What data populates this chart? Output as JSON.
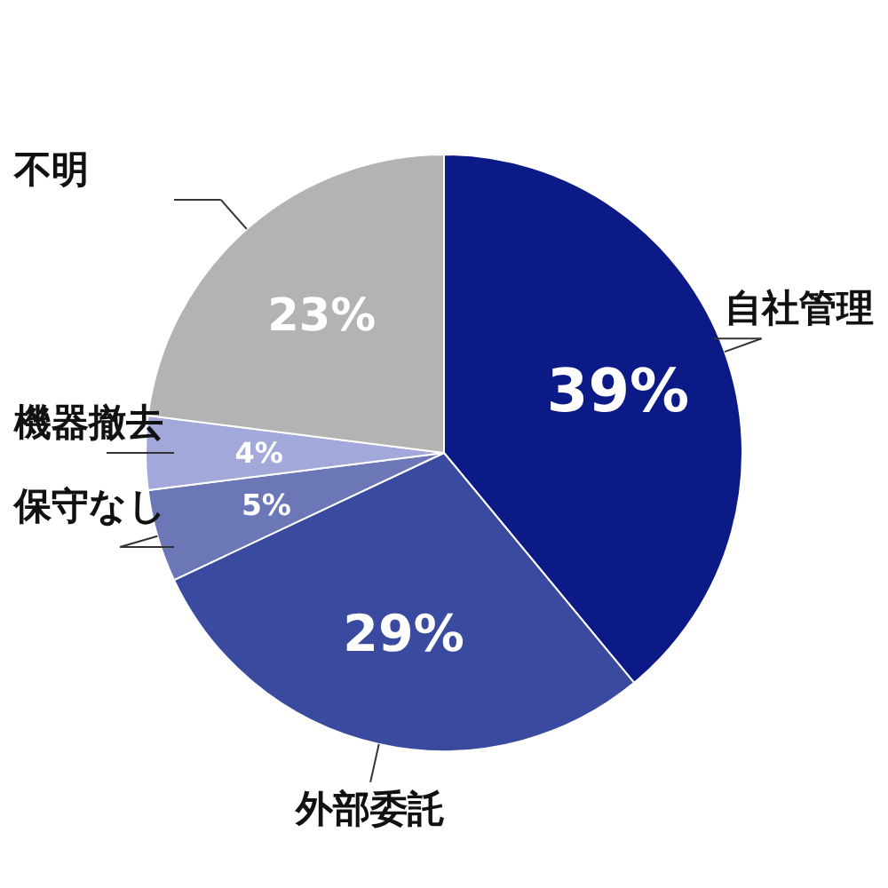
{
  "chart_data": {
    "type": "pie",
    "categories": [
      "自社管理",
      "外部委託",
      "保守なし",
      "機器撤去",
      "不明"
    ],
    "values": [
      39,
      29,
      5,
      4,
      23
    ],
    "value_labels": [
      "39%",
      "29%",
      "5%",
      "4%",
      "23%"
    ],
    "colors": [
      "#0c1a87",
      "#3a4a9e",
      "#6c77b7",
      "#a2a9da",
      "#b3b3b3"
    ]
  }
}
